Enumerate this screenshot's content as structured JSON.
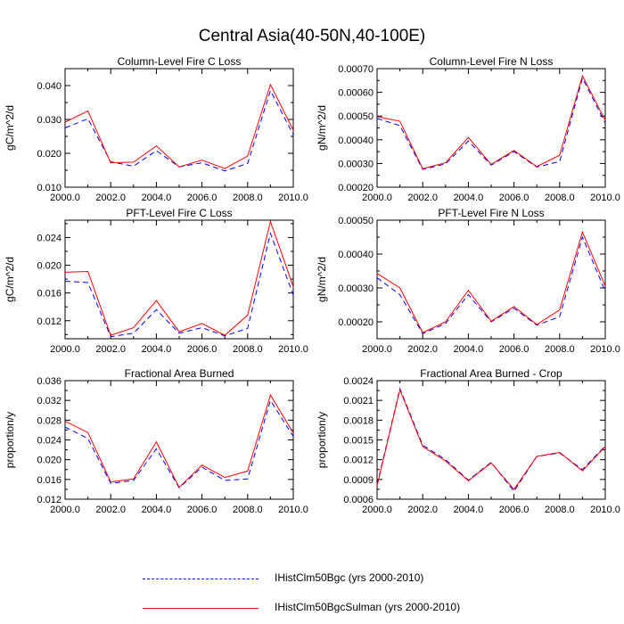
{
  "title": "Central Asia(40-50N,40-100E)",
  "colors": {
    "series_a": "#0000ff",
    "series_b": "#ff0000"
  },
  "legend": [
    {
      "label": "IHistClm50Bgc (yrs 2000-2010)",
      "color": "#0000ff",
      "dash": "dashed"
    },
    {
      "label": "IHistClm50BgcSulman (yrs 2000-2010)",
      "color": "#ff0000",
      "dash": "solid"
    }
  ],
  "chart_data": [
    {
      "type": "line",
      "title": "Column-Level Fire C Loss",
      "ylabel": "gC/m^2/d",
      "xlim": [
        2000,
        2010
      ],
      "ylim": [
        0.01,
        0.045
      ],
      "xticks": [
        "2000.0",
        "2002.0",
        "2004.0",
        "2006.0",
        "2008.0",
        "2010.0"
      ],
      "yticks": [
        0.01,
        0.02,
        0.03,
        0.04
      ],
      "ytick_labels": [
        "0.010",
        "0.020",
        "0.030",
        "0.040"
      ],
      "x": [
        2000,
        2001,
        2002,
        2003,
        2004,
        2005,
        2006,
        2007,
        2008,
        2009,
        2010
      ],
      "series": [
        {
          "name": "IHistClm50Bgc (yrs 2000-2010)",
          "values": [
            0.0275,
            0.0302,
            0.0175,
            0.0162,
            0.0208,
            0.016,
            0.0172,
            0.0148,
            0.017,
            0.0385,
            0.0255
          ]
        },
        {
          "name": "IHistClm50BgcSulman (yrs 2000-2010)",
          "values": [
            0.0292,
            0.0325,
            0.0172,
            0.0174,
            0.0222,
            0.016,
            0.018,
            0.0155,
            0.0192,
            0.0403,
            0.0268
          ]
        }
      ]
    },
    {
      "type": "line",
      "title": "Column-Level Fire N Loss",
      "ylabel": "gN/m^2/d",
      "xlim": [
        2000,
        2010
      ],
      "ylim": [
        0.0002,
        0.0007
      ],
      "xticks": [
        "2000.0",
        "2002.0",
        "2004.0",
        "2006.0",
        "2008.0",
        "2010.0"
      ],
      "yticks": [
        0.0002,
        0.0003,
        0.0004,
        0.0005,
        0.0006,
        0.0007
      ],
      "ytick_labels": [
        "0.00020",
        "0.00030",
        "0.00040",
        "0.00050",
        "0.00060",
        "0.00070"
      ],
      "x": [
        2000,
        2001,
        2002,
        2003,
        2004,
        2005,
        2006,
        2007,
        2008,
        2009,
        2010
      ],
      "series": [
        {
          "name": "IHistClm50Bgc (yrs 2000-2010)",
          "values": [
            0.00049,
            0.00046,
            0.000275,
            0.000298,
            0.000395,
            0.000293,
            0.00035,
            0.000285,
            0.000308,
            0.00066,
            0.00047
          ]
        },
        {
          "name": "IHistClm50BgcSulman (yrs 2000-2010)",
          "values": [
            0.000498,
            0.000478,
            0.000278,
            0.000303,
            0.00041,
            0.000296,
            0.000355,
            0.000287,
            0.000335,
            0.00067,
            0.000482
          ]
        }
      ]
    },
    {
      "type": "line",
      "title": "PFT-Level Fire C Loss",
      "ylabel": "gC/m^2/d",
      "xlim": [
        2000,
        2010
      ],
      "ylim": [
        0.0094,
        0.0265
      ],
      "xticks": [
        "2000.0",
        "2002.0",
        "2004.0",
        "2006.0",
        "2008.0",
        "2010.0"
      ],
      "yticks": [
        0.012,
        0.016,
        0.02,
        0.024
      ],
      "ytick_labels": [
        "0.012",
        "0.016",
        "0.020",
        "0.024"
      ],
      "x": [
        2000,
        2001,
        2002,
        2003,
        2004,
        2005,
        2006,
        2007,
        2008,
        2009,
        2010
      ],
      "series": [
        {
          "name": "IHistClm50Bgc (yrs 2000-2010)",
          "values": [
            0.0177,
            0.0175,
            0.0097,
            0.0102,
            0.0136,
            0.0102,
            0.011,
            0.0098,
            0.0109,
            0.0246,
            0.0157
          ]
        },
        {
          "name": "IHistClm50BgcSulman (yrs 2000-2010)",
          "values": [
            0.019,
            0.0191,
            0.0099,
            0.011,
            0.0149,
            0.0104,
            0.0116,
            0.0099,
            0.0128,
            0.0263,
            0.0169
          ]
        }
      ]
    },
    {
      "type": "line",
      "title": "PFT-Level Fire N Loss",
      "ylabel": "gN/m^2/d",
      "xlim": [
        2000,
        2010
      ],
      "ylim": [
        0.00015,
        0.0005
      ],
      "xticks": [
        "2000.0",
        "2002.0",
        "2004.0",
        "2006.0",
        "2008.0",
        "2010.0"
      ],
      "yticks": [
        0.0002,
        0.0003,
        0.0004,
        0.0005
      ],
      "ytick_labels": [
        "0.00020",
        "0.00030",
        "0.00040",
        "0.00050"
      ],
      "x": [
        2000,
        2001,
        2002,
        2003,
        2004,
        2005,
        2006,
        2007,
        2008,
        2009,
        2010
      ],
      "series": [
        {
          "name": "IHistClm50Bgc (yrs 2000-2010)",
          "values": [
            0.00033,
            0.00028,
            0.000165,
            0.000195,
            0.00028,
            0.0002,
            0.00024,
            0.00019,
            0.000215,
            0.00045,
            0.00029
          ]
        },
        {
          "name": "IHistClm50BgcSulman (yrs 2000-2010)",
          "values": [
            0.000343,
            0.0003,
            0.000168,
            0.0002,
            0.000293,
            0.000202,
            0.000245,
            0.000192,
            0.000235,
            0.000465,
            0.000305
          ]
        }
      ]
    },
    {
      "type": "line",
      "title": "Fractional Area Burned",
      "ylabel": "proportion/y",
      "xlim": [
        2000,
        2010
      ],
      "ylim": [
        0.012,
        0.036
      ],
      "xticks": [
        "2000.0",
        "2002.0",
        "2004.0",
        "2006.0",
        "2008.0",
        "2010.0"
      ],
      "yticks": [
        0.012,
        0.016,
        0.02,
        0.024,
        0.028,
        0.032,
        0.036
      ],
      "ytick_labels": [
        "0.012",
        "0.016",
        "0.020",
        "0.024",
        "0.028",
        "0.032",
        "0.036"
      ],
      "x": [
        2000,
        2001,
        2002,
        2003,
        2004,
        2005,
        2006,
        2007,
        2008,
        2009,
        2010
      ],
      "series": [
        {
          "name": "IHistClm50Bgc (yrs 2000-2010)",
          "values": [
            0.0266,
            0.0243,
            0.0152,
            0.0158,
            0.0222,
            0.0143,
            0.0185,
            0.0158,
            0.0161,
            0.032,
            0.0247
          ]
        },
        {
          "name": "IHistClm50BgcSulman (yrs 2000-2010)",
          "values": [
            0.0278,
            0.0255,
            0.0155,
            0.0161,
            0.0236,
            0.0144,
            0.0189,
            0.0164,
            0.0177,
            0.0331,
            0.0254
          ]
        }
      ]
    },
    {
      "type": "line",
      "title": "Fractional Area Burned - Crop",
      "ylabel": "proportion/y",
      "xlim": [
        2000,
        2010
      ],
      "ylim": [
        0.0006,
        0.0024
      ],
      "xticks": [
        "2000.0",
        "2002.0",
        "2004.0",
        "2006.0",
        "2008.0",
        "2010.0"
      ],
      "yticks": [
        0.0006,
        0.0009,
        0.0012,
        0.0015,
        0.0018,
        0.0021,
        0.0024
      ],
      "ytick_labels": [
        "0.0006",
        "0.0009",
        "0.0012",
        "0.0015",
        "0.0018",
        "0.0021",
        "0.0024"
      ],
      "x": [
        2000,
        2001,
        2002,
        2003,
        2004,
        2005,
        2006,
        2007,
        2008,
        2009,
        2010
      ],
      "series": [
        {
          "name": "IHistClm50Bgc (yrs 2000-2010)",
          "values": [
            0.00082,
            0.00228,
            0.00142,
            0.0012,
            0.00089,
            0.00116,
            0.00072,
            0.00125,
            0.0013,
            0.00105,
            0.00141
          ]
        },
        {
          "name": "IHistClm50BgcSulman (yrs 2000-2010)",
          "values": [
            0.0008,
            0.00226,
            0.0014,
            0.00118,
            0.00088,
            0.00115,
            0.00075,
            0.00125,
            0.00131,
            0.00103,
            0.0014
          ]
        }
      ]
    }
  ]
}
